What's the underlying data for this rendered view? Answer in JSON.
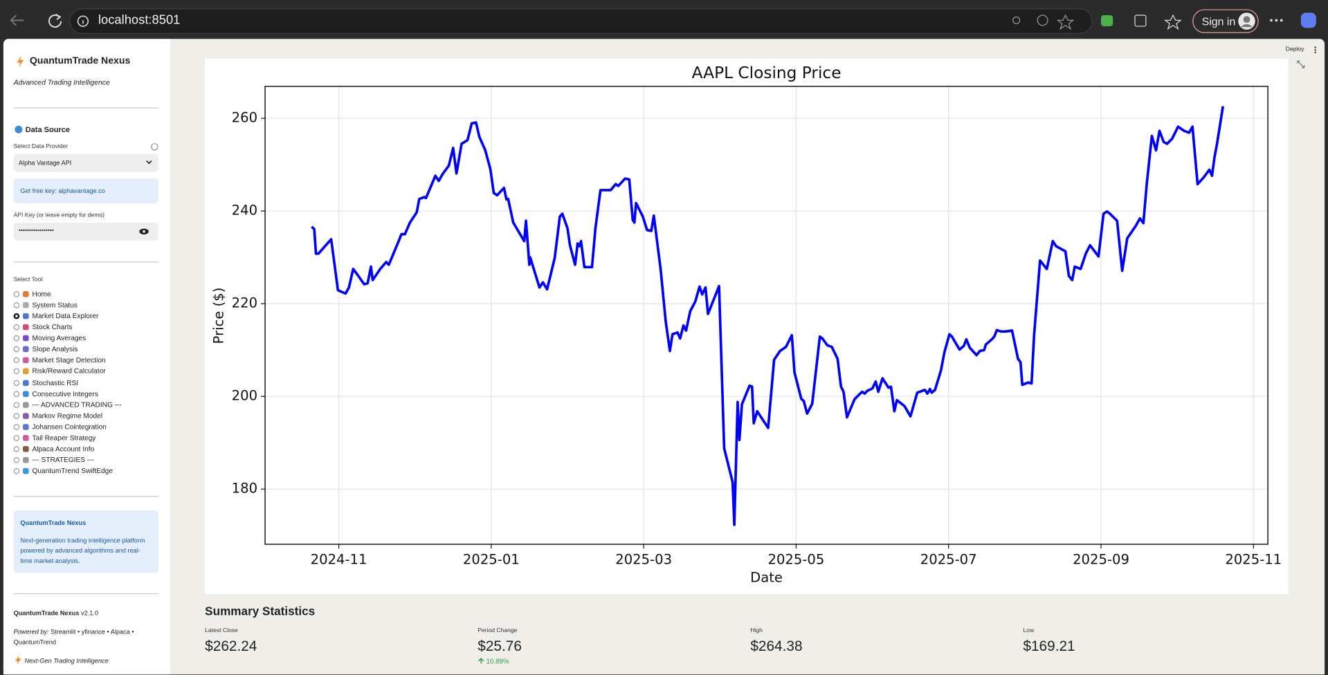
{
  "browser": {
    "url": "localhost:8501",
    "sign_in": "Sign in"
  },
  "sidebar": {
    "title": "QuantumTrade Nexus",
    "tagline": "Advanced Trading Intelligence",
    "data_source": "Data Source",
    "provider_label": "Select Data Provider",
    "provider": "Alpha Vantage API",
    "info": "Get free key: alphavantage.co",
    "api_key_label": "API Key (or leave empty for demo)",
    "api_key": "•••••••••••••••••",
    "tool_label": "Select Tool",
    "tools": [
      "Home",
      "System Status",
      "Market Data Explorer",
      "Stock Charts",
      "Moving Averages",
      "Slope Analysis",
      "Market Stage Detection",
      "Risk/Reward Calculator",
      "Stochastic RSI",
      "Consecutive Integers",
      "--- ADVANCED TRADING ---",
      "Markov Regime Model",
      "Johansen Cointegration",
      "Tail Reaper Strategy",
      "Alpaca Account Info",
      "--- STRATEGIES ---",
      "QuantumTrend SwiftEdge"
    ],
    "selected_index": 2,
    "about": {
      "title": "QuantumTrade Nexus",
      "lines": [
        "Next-generation trading intelligence platform",
        "powered by advanced algorithms and real-",
        "time market analysis."
      ]
    },
    "footer": {
      "name": "QuantumTrade Nexus",
      "version": "v2.1.0",
      "powered_label": "Powered by:",
      "powered_lines": [
        "Streamlit • yfinance • Alpaca •",
        "QuantumTrend"
      ],
      "tagline": "Next-Gen Trading Intelligence"
    }
  },
  "header": {
    "deploy": "Deploy"
  },
  "chart_data": {
    "type": "line",
    "title": "AAPL Closing Price",
    "x_label": "Date",
    "y_label": "Price ($)",
    "color": "#0000ff",
    "grid": true,
    "xlim": [
      -0.967,
      12.189
    ],
    "xticks": [
      {
        "value": 0,
        "label": "2024-11"
      },
      {
        "value": 2,
        "label": "2025-01"
      },
      {
        "value": 4,
        "label": "2025-03"
      },
      {
        "value": 6,
        "label": "2025-05"
      },
      {
        "value": 8,
        "label": "2025-07"
      },
      {
        "value": 10,
        "label": "2025-09"
      },
      {
        "value": 12,
        "label": "2025-11"
      }
    ],
    "ylim": [
      168.1,
      266.9
    ],
    "yticks": [
      180,
      200,
      220,
      240,
      260
    ],
    "x": [
      -0.356,
      -0.322,
      -0.3,
      -0.267,
      -0.122,
      -0.1,
      -0.011,
      0.089,
      0.133,
      0.189,
      0.256,
      0.333,
      0.378,
      0.422,
      0.444,
      0.544,
      0.622,
      0.656,
      0.778,
      0.822,
      0.867,
      0.933,
      1.022,
      1.056,
      1.122,
      1.144,
      1.267,
      1.311,
      1.367,
      1.444,
      1.5,
      1.544,
      1.611,
      1.689,
      1.744,
      1.8,
      1.844,
      1.922,
      1.989,
      2.033,
      2.078,
      2.167,
      2.2,
      2.222,
      2.289,
      2.433,
      2.456,
      2.5,
      2.511,
      2.633,
      2.678,
      2.733,
      2.833,
      2.9,
      2.933,
      3.0,
      3.033,
      3.1,
      3.133,
      3.156,
      3.178,
      3.222,
      3.322,
      3.367,
      3.433,
      3.567,
      3.633,
      3.667,
      3.756,
      3.811,
      3.856,
      3.878,
      3.9,
      3.989,
      4.044,
      4.1,
      4.133,
      4.222,
      4.289,
      4.344,
      4.378,
      4.444,
      4.478,
      4.522,
      4.556,
      4.611,
      4.678,
      4.733,
      4.767,
      4.811,
      4.844,
      4.989,
      5.056,
      5.167,
      5.189,
      5.233,
      5.256,
      5.289,
      5.389,
      5.422,
      5.444,
      5.489,
      5.633,
      5.711,
      5.789,
      5.867,
      5.944,
      5.978,
      6.067,
      6.1,
      6.144,
      6.211,
      6.311,
      6.344,
      6.411,
      6.467,
      6.544,
      6.589,
      6.622,
      6.667,
      6.767,
      6.833,
      6.867,
      6.9,
      6.933,
      7.0,
      7.044,
      7.078,
      7.133,
      7.211,
      7.244,
      7.289,
      7.322,
      7.422,
      7.5,
      7.589,
      7.689,
      7.722,
      7.756,
      7.778,
      7.822,
      7.9,
      7.944,
      8.011,
      8.044,
      8.144,
      8.2,
      8.233,
      8.278,
      8.367,
      8.411,
      8.467,
      8.489,
      8.567,
      8.6,
      8.633,
      8.689,
      8.744,
      8.833,
      8.911,
      8.944,
      8.967,
      9.044,
      9.089,
      9.122,
      9.2,
      9.289,
      9.367,
      9.411,
      9.533,
      9.578,
      9.622,
      9.656,
      9.733,
      9.8,
      9.856,
      9.967,
      10.033,
      10.078,
      10.111,
      10.211,
      10.278,
      10.344,
      10.456,
      10.511,
      10.556,
      10.6,
      10.667,
      10.722,
      10.767,
      10.822,
      10.867,
      10.933,
      11.011,
      11.089,
      11.156,
      11.2,
      11.267,
      11.344,
      11.422,
      11.456,
      11.489,
      11.522,
      11.6
    ],
    "values": [
      236.6,
      236.1,
      230.8,
      230.8,
      233.5,
      233.9,
      222.9,
      222.2,
      223.5,
      227.5,
      226.0,
      224.2,
      224.4,
      228.0,
      225.1,
      227.5,
      229.0,
      228.4,
      233.2,
      235.0,
      235.0,
      237.5,
      239.7,
      242.6,
      243.0,
      242.8,
      247.6,
      246.5,
      248.1,
      249.8,
      253.6,
      248.1,
      254.5,
      255.3,
      258.9,
      259.1,
      256.0,
      253.1,
      249.0,
      243.9,
      243.4,
      245.0,
      242.5,
      242.6,
      237.5,
      233.5,
      237.9,
      228.4,
      230.0,
      223.5,
      224.6,
      223.1,
      229.9,
      238.8,
      239.4,
      236.3,
      232.6,
      228.4,
      233.0,
      232.4,
      233.5,
      227.9,
      227.9,
      236.3,
      244.5,
      244.5,
      245.8,
      245.4,
      247.0,
      246.8,
      238.1,
      237.5,
      241.7,
      238.8,
      235.9,
      235.7,
      239.0,
      227.5,
      216.2,
      209.8,
      213.4,
      213.8,
      212.5,
      215.3,
      214.2,
      218.4,
      220.5,
      223.7,
      222.0,
      223.5,
      217.8,
      223.8,
      188.8,
      181.5,
      172.3,
      198.8,
      190.6,
      198.3,
      202.3,
      202.1,
      194.2,
      196.8,
      193.2,
      207.9,
      209.8,
      210.7,
      213.2,
      205.2,
      199.5,
      199.0,
      196.3,
      198.4,
      212.9,
      212.5,
      211.0,
      210.7,
      208.1,
      202.1,
      201.0,
      195.5,
      199.4,
      200.5,
      201.0,
      200.6,
      201.2,
      201.7,
      203.2,
      201.0,
      203.9,
      201.9,
      202.1,
      196.8,
      199.2,
      197.9,
      195.7,
      200.8,
      201.4,
      200.6,
      201.6,
      200.8,
      201.4,
      205.6,
      209.4,
      213.4,
      212.9,
      210.1,
      210.9,
      212.3,
      210.5,
      208.9,
      209.8,
      210.0,
      211.2,
      212.3,
      212.9,
      214.3,
      214.0,
      214.0,
      214.2,
      208.1,
      207.4,
      202.5,
      203.0,
      202.8,
      213.2,
      229.3,
      227.5,
      233.5,
      232.4,
      231.3,
      226.0,
      225.1,
      228.0,
      227.5,
      230.8,
      232.6,
      230.2,
      239.4,
      239.9,
      239.5,
      237.9,
      227.1,
      234.1,
      236.8,
      238.4,
      237.4,
      245.8,
      256.2,
      253.1,
      257.3,
      254.9,
      254.5,
      255.6,
      258.2,
      257.3,
      256.9,
      258.2,
      245.8,
      247.2,
      248.9,
      247.6,
      251.6,
      254.5,
      262.6
    ]
  },
  "summary": {
    "title": "Summary Statistics",
    "metrics": [
      {
        "label": "Latest Close",
        "value": "$262.24"
      },
      {
        "label": "Period Change",
        "value": "$25.76",
        "delta": "10.89%"
      },
      {
        "label": "High",
        "value": "$264.38"
      },
      {
        "label": "Low",
        "value": "$169.21"
      }
    ]
  }
}
